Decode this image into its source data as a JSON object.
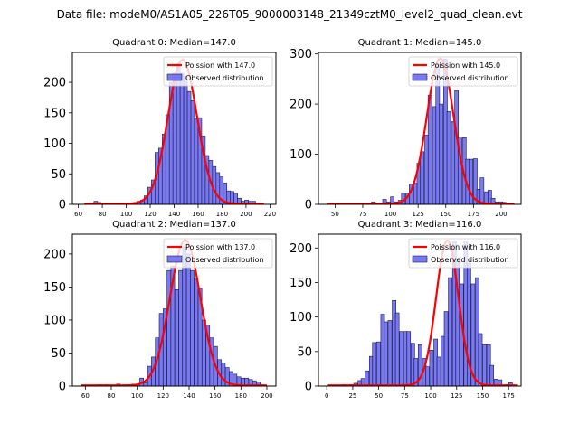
{
  "figure": {
    "suptitle": "Data file: modeM0/AS1A05_226T05_9000003148_21349cztM0_level2_quad_clean.evt"
  },
  "colors": {
    "bar_fill": "#6a6af0",
    "bar_edge": "#1a1a4a",
    "curve": "#ff0000"
  },
  "chart_data": [
    {
      "type": "bar",
      "title": "Quadrant 0: Median=147.0",
      "xlim": [
        55,
        225
      ],
      "ylim": [
        0,
        249
      ],
      "xticks": [
        60,
        80,
        100,
        120,
        140,
        160,
        180,
        200,
        220
      ],
      "yticks": [
        0,
        50,
        100,
        150,
        200
      ],
      "legend": [
        "Poission with 147.0",
        "Observed distribution"
      ],
      "legend_position": "upper right",
      "bin_width": 3,
      "bins": [
        [
          73,
          5
        ],
        [
          76,
          3
        ],
        [
          79,
          1
        ],
        [
          82,
          1
        ],
        [
          85,
          1
        ],
        [
          88,
          1
        ],
        [
          91,
          1
        ],
        [
          94,
          1
        ],
        [
          97,
          1
        ],
        [
          100,
          1
        ],
        [
          103,
          1
        ],
        [
          106,
          3
        ],
        [
          109,
          5
        ],
        [
          112,
          7
        ],
        [
          115,
          14
        ],
        [
          118,
          28
        ],
        [
          121,
          40
        ],
        [
          124,
          85
        ],
        [
          127,
          92
        ],
        [
          130,
          115
        ],
        [
          133,
          147
        ],
        [
          136,
          200
        ],
        [
          139,
          215
        ],
        [
          142,
          230
        ],
        [
          145,
          215
        ],
        [
          148,
          210
        ],
        [
          151,
          185
        ],
        [
          154,
          170
        ],
        [
          157,
          140
        ],
        [
          160,
          142
        ],
        [
          163,
          112
        ],
        [
          166,
          80
        ],
        [
          169,
          72
        ],
        [
          172,
          62
        ],
        [
          175,
          52
        ],
        [
          178,
          45
        ],
        [
          181,
          35
        ],
        [
          184,
          22
        ],
        [
          187,
          21
        ],
        [
          190,
          18
        ],
        [
          193,
          10
        ],
        [
          196,
          5
        ],
        [
          199,
          7
        ],
        [
          202,
          5
        ],
        [
          205,
          5
        ]
      ],
      "poisson_mean": 147.0,
      "poisson_peak": 236,
      "curve_range": [
        65,
        215
      ]
    },
    {
      "type": "bar",
      "title": "Quadrant 1: Median=145.0",
      "xlim": [
        35,
        218
      ],
      "ylim": [
        0,
        303
      ],
      "xticks": [
        50,
        75,
        100,
        125,
        150,
        175,
        200
      ],
      "yticks": [
        0,
        100,
        200,
        300
      ],
      "legend": [
        "Poission with 145.0",
        "Observed distribution"
      ],
      "legend_position": "upper right",
      "bin_width": 3.4,
      "bins": [
        [
          79,
          3
        ],
        [
          83,
          5
        ],
        [
          86,
          3
        ],
        [
          90,
          3
        ],
        [
          93,
          10
        ],
        [
          97,
          5
        ],
        [
          100,
          15
        ],
        [
          103,
          5
        ],
        [
          107,
          8
        ],
        [
          110,
          22
        ],
        [
          114,
          22
        ],
        [
          117,
          40
        ],
        [
          121,
          42
        ],
        [
          124,
          82
        ],
        [
          127,
          105
        ],
        [
          131,
          138
        ],
        [
          134,
          218
        ],
        [
          138,
          195
        ],
        [
          141,
          280
        ],
        [
          144,
          200
        ],
        [
          148,
          290
        ],
        [
          151,
          185
        ],
        [
          155,
          165
        ],
        [
          158,
          227
        ],
        [
          161,
          132
        ],
        [
          165,
          133
        ],
        [
          168,
          90
        ],
        [
          171,
          90
        ],
        [
          175,
          91
        ],
        [
          178,
          30
        ],
        [
          181,
          53
        ],
        [
          185,
          25
        ],
        [
          188,
          28
        ],
        [
          191,
          12
        ],
        [
          195,
          5
        ],
        [
          198,
          5
        ],
        [
          201,
          4
        ],
        [
          205,
          2
        ]
      ],
      "poisson_mean": 145.0,
      "poisson_peak": 290,
      "curve_range": [
        43,
        212
      ]
    },
    {
      "type": "bar",
      "title": "Quadrant 2: Median=137.0",
      "xlim": [
        50,
        207
      ],
      "ylim": [
        0,
        230
      ],
      "xticks": [
        60,
        80,
        100,
        120,
        140,
        160,
        180,
        200
      ],
      "yticks": [
        0,
        50,
        100,
        150,
        200
      ],
      "legend": [
        "Poission with 137.0",
        "Observed distribution"
      ],
      "legend_position": "upper right",
      "bin_width": 2.9,
      "bins": [
        [
          70,
          2
        ],
        [
          75,
          2
        ],
        [
          84,
          3
        ],
        [
          90,
          2
        ],
        [
          96,
          3
        ],
        [
          99,
          3
        ],
        [
          102,
          12
        ],
        [
          105,
          5
        ],
        [
          108,
          30
        ],
        [
          111,
          44
        ],
        [
          114,
          73
        ],
        [
          117,
          110
        ],
        [
          120,
          117
        ],
        [
          123,
          175
        ],
        [
          126,
          182
        ],
        [
          129,
          146
        ],
        [
          132,
          175
        ],
        [
          135,
          210
        ],
        [
          138,
          200
        ],
        [
          141,
          175
        ],
        [
          144,
          162
        ],
        [
          147,
          148
        ],
        [
          150,
          100
        ],
        [
          153,
          92
        ],
        [
          156,
          73
        ],
        [
          159,
          60
        ],
        [
          162,
          40
        ],
        [
          165,
          35
        ],
        [
          168,
          28
        ],
        [
          171,
          22
        ],
        [
          174,
          18
        ],
        [
          177,
          14
        ],
        [
          180,
          12
        ],
        [
          183,
          12
        ],
        [
          186,
          10
        ],
        [
          189,
          8
        ],
        [
          192,
          6
        ]
      ],
      "poisson_mean": 137.0,
      "poisson_peak": 220,
      "curve_range": [
        57,
        200
      ]
    },
    {
      "type": "bar",
      "title": "Quadrant 3: Median=116.0",
      "xlim": [
        -8,
        187
      ],
      "ylim": [
        0,
        220
      ],
      "xticks": [
        0,
        25,
        50,
        75,
        100,
        125,
        150,
        175
      ],
      "yticks": [
        0,
        50,
        100,
        150,
        200
      ],
      "legend": [
        "Poission with 116.0",
        "Observed distribution"
      ],
      "legend_position": "upper right",
      "bin_width": 3.6,
      "bins": [
        [
          15,
          2
        ],
        [
          22,
          2
        ],
        [
          26,
          4
        ],
        [
          30,
          8
        ],
        [
          33,
          11
        ],
        [
          37,
          22
        ],
        [
          41,
          43
        ],
        [
          44,
          63
        ],
        [
          48,
          64
        ],
        [
          52,
          104
        ],
        [
          55,
          93
        ],
        [
          59,
          95
        ],
        [
          63,
          124
        ],
        [
          66,
          106
        ],
        [
          70,
          79
        ],
        [
          74,
          79
        ],
        [
          77,
          79
        ],
        [
          81,
          62
        ],
        [
          84,
          40
        ],
        [
          88,
          60
        ],
        [
          92,
          40
        ],
        [
          95,
          28
        ],
        [
          99,
          52
        ],
        [
          103,
          68
        ],
        [
          106,
          42
        ],
        [
          110,
          72
        ],
        [
          113,
          108
        ],
        [
          117,
          157
        ],
        [
          121,
          210
        ],
        [
          124,
          180
        ],
        [
          128,
          148
        ],
        [
          132,
          210
        ],
        [
          135,
          178
        ],
        [
          139,
          148
        ],
        [
          143,
          157
        ],
        [
          146,
          76
        ],
        [
          150,
          60
        ],
        [
          154,
          60
        ],
        [
          157,
          30
        ],
        [
          161,
          10
        ],
        [
          165,
          9
        ],
        [
          172,
          2
        ],
        [
          175,
          5
        ]
      ],
      "poisson_mean": 116.0,
      "poisson_peak": 210,
      "curve_range": [
        1,
        184
      ]
    }
  ]
}
